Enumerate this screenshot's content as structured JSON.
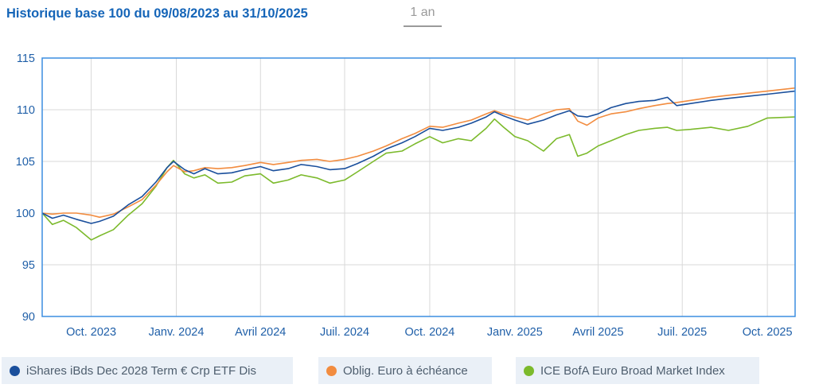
{
  "header": {
    "title": "Historique base 100 du 09/08/2023 au 31/10/2025",
    "range_tab": "1 an"
  },
  "legend": [
    {
      "label": "iShares iBds Dec 2028 Term € Crp ETF Dis",
      "color": "#1a4f9c"
    },
    {
      "label": "Oblig. Euro à échéance",
      "color": "#f28c3f"
    },
    {
      "label": "ICE BofA Euro Broad Market Index",
      "color": "#7cba2c"
    }
  ],
  "chart_data": {
    "type": "line",
    "title": "Historique base 100 du 09/08/2023 au 31/10/2025",
    "xlabel": "",
    "ylabel": "",
    "x_ticks": [
      "Oct. 2023",
      "Janv. 2024",
      "Avril 2024",
      "Juil. 2024",
      "Oct. 2024",
      "Janv. 2025",
      "Avril 2025",
      "Juil. 2025",
      "Oct. 2025"
    ],
    "x_tick_dates": [
      "2023-10-01",
      "2024-01-01",
      "2024-04-01",
      "2024-07-01",
      "2024-10-01",
      "2025-01-01",
      "2025-04-01",
      "2025-07-01",
      "2025-10-01"
    ],
    "x_range": [
      "2023-08-09",
      "2025-10-31"
    ],
    "y_ticks": [
      90,
      95,
      100,
      105,
      110,
      115
    ],
    "ylim": [
      90,
      115
    ],
    "grid": true,
    "legend_position": "bottom",
    "series": [
      {
        "name": "iShares iBds Dec 2028 Term € Crp ETF Dis",
        "color": "#1a4f9c",
        "points": [
          [
            "2023-08-09",
            100.0
          ],
          [
            "2023-08-20",
            99.5
          ],
          [
            "2023-09-01",
            99.8
          ],
          [
            "2023-09-15",
            99.4
          ],
          [
            "2023-10-01",
            99.0
          ],
          [
            "2023-10-10",
            99.2
          ],
          [
            "2023-10-25",
            99.7
          ],
          [
            "2023-11-10",
            100.8
          ],
          [
            "2023-11-25",
            101.6
          ],
          [
            "2023-12-10",
            103.0
          ],
          [
            "2023-12-22",
            104.4
          ],
          [
            "2023-12-29",
            105.0
          ],
          [
            "2024-01-10",
            104.2
          ],
          [
            "2024-01-20",
            103.8
          ],
          [
            "2024-02-01",
            104.3
          ],
          [
            "2024-02-15",
            103.8
          ],
          [
            "2024-03-01",
            103.9
          ],
          [
            "2024-03-15",
            104.2
          ],
          [
            "2024-04-01",
            104.5
          ],
          [
            "2024-04-15",
            104.1
          ],
          [
            "2024-05-01",
            104.3
          ],
          [
            "2024-05-15",
            104.7
          ],
          [
            "2024-06-01",
            104.5
          ],
          [
            "2024-06-15",
            104.2
          ],
          [
            "2024-07-01",
            104.3
          ],
          [
            "2024-07-15",
            104.8
          ],
          [
            "2024-08-01",
            105.5
          ],
          [
            "2024-08-15",
            106.2
          ],
          [
            "2024-09-01",
            106.8
          ],
          [
            "2024-09-15",
            107.4
          ],
          [
            "2024-10-01",
            108.2
          ],
          [
            "2024-10-15",
            108.0
          ],
          [
            "2024-11-01",
            108.3
          ],
          [
            "2024-11-15",
            108.7
          ],
          [
            "2024-12-01",
            109.3
          ],
          [
            "2024-12-10",
            109.8
          ],
          [
            "2024-12-20",
            109.4
          ],
          [
            "2025-01-01",
            109.0
          ],
          [
            "2025-01-15",
            108.6
          ],
          [
            "2025-02-01",
            109.0
          ],
          [
            "2025-02-15",
            109.5
          ],
          [
            "2025-03-01",
            109.9
          ],
          [
            "2025-03-10",
            109.4
          ],
          [
            "2025-03-20",
            109.3
          ],
          [
            "2025-04-01",
            109.6
          ],
          [
            "2025-04-15",
            110.2
          ],
          [
            "2025-05-01",
            110.6
          ],
          [
            "2025-05-15",
            110.8
          ],
          [
            "2025-06-01",
            110.9
          ],
          [
            "2025-06-15",
            111.2
          ],
          [
            "2025-06-25",
            110.4
          ],
          [
            "2025-07-10",
            110.6
          ],
          [
            "2025-08-01",
            110.9
          ],
          [
            "2025-08-20",
            111.1
          ],
          [
            "2025-09-10",
            111.3
          ],
          [
            "2025-10-01",
            111.5
          ],
          [
            "2025-10-31",
            111.8
          ]
        ]
      },
      {
        "name": "Oblig. Euro à échéance",
        "color": "#f28c3f",
        "points": [
          [
            "2023-08-09",
            100.0
          ],
          [
            "2023-08-20",
            99.9
          ],
          [
            "2023-09-01",
            100.0
          ],
          [
            "2023-09-15",
            100.0
          ],
          [
            "2023-10-01",
            99.8
          ],
          [
            "2023-10-10",
            99.6
          ],
          [
            "2023-10-25",
            99.9
          ],
          [
            "2023-11-10",
            100.6
          ],
          [
            "2023-11-25",
            101.3
          ],
          [
            "2023-12-10",
            102.7
          ],
          [
            "2023-12-22",
            104.0
          ],
          [
            "2023-12-29",
            104.6
          ],
          [
            "2024-01-10",
            104.0
          ],
          [
            "2024-01-20",
            104.1
          ],
          [
            "2024-02-01",
            104.4
          ],
          [
            "2024-02-15",
            104.3
          ],
          [
            "2024-03-01",
            104.4
          ],
          [
            "2024-03-15",
            104.6
          ],
          [
            "2024-04-01",
            104.9
          ],
          [
            "2024-04-15",
            104.7
          ],
          [
            "2024-05-01",
            104.9
          ],
          [
            "2024-05-15",
            105.1
          ],
          [
            "2024-06-01",
            105.2
          ],
          [
            "2024-06-15",
            105.0
          ],
          [
            "2024-07-01",
            105.2
          ],
          [
            "2024-07-15",
            105.5
          ],
          [
            "2024-08-01",
            106.0
          ],
          [
            "2024-08-15",
            106.5
          ],
          [
            "2024-09-01",
            107.2
          ],
          [
            "2024-09-15",
            107.7
          ],
          [
            "2024-10-01",
            108.4
          ],
          [
            "2024-10-15",
            108.3
          ],
          [
            "2024-11-01",
            108.7
          ],
          [
            "2024-11-15",
            109.0
          ],
          [
            "2024-12-01",
            109.6
          ],
          [
            "2024-12-10",
            109.9
          ],
          [
            "2024-12-20",
            109.6
          ],
          [
            "2025-01-01",
            109.3
          ],
          [
            "2025-01-15",
            109.0
          ],
          [
            "2025-02-01",
            109.6
          ],
          [
            "2025-02-15",
            110.0
          ],
          [
            "2025-03-01",
            110.1
          ],
          [
            "2025-03-10",
            108.9
          ],
          [
            "2025-03-20",
            108.5
          ],
          [
            "2025-04-01",
            109.2
          ],
          [
            "2025-04-15",
            109.6
          ],
          [
            "2025-05-01",
            109.8
          ],
          [
            "2025-05-15",
            110.1
          ],
          [
            "2025-06-01",
            110.4
          ],
          [
            "2025-06-15",
            110.6
          ],
          [
            "2025-06-25",
            110.7
          ],
          [
            "2025-07-10",
            110.9
          ],
          [
            "2025-08-01",
            111.2
          ],
          [
            "2025-08-20",
            111.4
          ],
          [
            "2025-09-10",
            111.6
          ],
          [
            "2025-10-01",
            111.8
          ],
          [
            "2025-10-31",
            112.1
          ]
        ]
      },
      {
        "name": "ICE BofA Euro Broad Market Index",
        "color": "#7cba2c",
        "points": [
          [
            "2023-08-09",
            100.0
          ],
          [
            "2023-08-20",
            98.9
          ],
          [
            "2023-09-01",
            99.3
          ],
          [
            "2023-09-15",
            98.6
          ],
          [
            "2023-10-01",
            97.4
          ],
          [
            "2023-10-10",
            97.8
          ],
          [
            "2023-10-25",
            98.4
          ],
          [
            "2023-11-10",
            99.8
          ],
          [
            "2023-11-25",
            100.9
          ],
          [
            "2023-12-10",
            102.6
          ],
          [
            "2023-12-22",
            104.4
          ],
          [
            "2023-12-29",
            105.1
          ],
          [
            "2024-01-10",
            103.8
          ],
          [
            "2024-01-20",
            103.4
          ],
          [
            "2024-02-01",
            103.7
          ],
          [
            "2024-02-15",
            102.9
          ],
          [
            "2024-03-01",
            103.0
          ],
          [
            "2024-03-15",
            103.6
          ],
          [
            "2024-04-01",
            103.8
          ],
          [
            "2024-04-15",
            102.9
          ],
          [
            "2024-05-01",
            103.2
          ],
          [
            "2024-05-15",
            103.7
          ],
          [
            "2024-06-01",
            103.4
          ],
          [
            "2024-06-15",
            102.9
          ],
          [
            "2024-07-01",
            103.2
          ],
          [
            "2024-07-15",
            104.0
          ],
          [
            "2024-08-01",
            105.0
          ],
          [
            "2024-08-15",
            105.8
          ],
          [
            "2024-09-01",
            106.0
          ],
          [
            "2024-09-15",
            106.7
          ],
          [
            "2024-10-01",
            107.4
          ],
          [
            "2024-10-15",
            106.8
          ],
          [
            "2024-11-01",
            107.2
          ],
          [
            "2024-11-15",
            107.0
          ],
          [
            "2024-12-01",
            108.2
          ],
          [
            "2024-12-10",
            109.1
          ],
          [
            "2024-12-20",
            108.3
          ],
          [
            "2025-01-01",
            107.4
          ],
          [
            "2025-01-15",
            107.0
          ],
          [
            "2025-02-01",
            106.0
          ],
          [
            "2025-02-15",
            107.2
          ],
          [
            "2025-03-01",
            107.6
          ],
          [
            "2025-03-10",
            105.5
          ],
          [
            "2025-03-20",
            105.8
          ],
          [
            "2025-04-01",
            106.5
          ],
          [
            "2025-04-15",
            107.0
          ],
          [
            "2025-05-01",
            107.6
          ],
          [
            "2025-05-15",
            108.0
          ],
          [
            "2025-06-01",
            108.2
          ],
          [
            "2025-06-15",
            108.3
          ],
          [
            "2025-06-25",
            108.0
          ],
          [
            "2025-07-10",
            108.1
          ],
          [
            "2025-08-01",
            108.3
          ],
          [
            "2025-08-20",
            108.0
          ],
          [
            "2025-09-10",
            108.4
          ],
          [
            "2025-10-01",
            109.2
          ],
          [
            "2025-10-31",
            109.3
          ]
        ]
      }
    ]
  }
}
